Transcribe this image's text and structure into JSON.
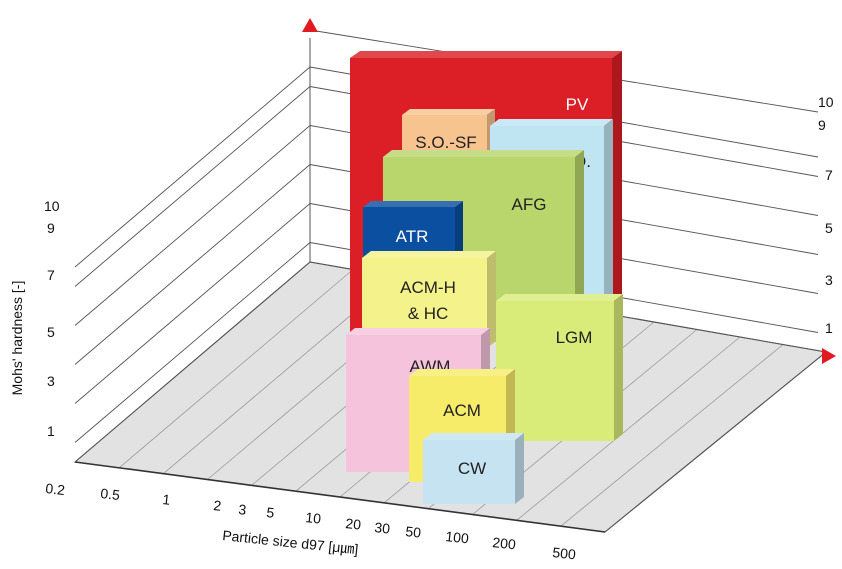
{
  "chart_data": {
    "type": "3d-box",
    "title": "",
    "xlabel": "Particle size d97 [μ㎛]",
    "ylabel": "Mohs' hardness [-]",
    "x_ticks": [
      "0.2",
      "0.5",
      "1",
      "2",
      "3",
      "5",
      "10",
      "20",
      "30",
      "50",
      "100",
      "200",
      "500"
    ],
    "y_ticks_left": [
      "1",
      "3",
      "5",
      "7",
      "9",
      "10"
    ],
    "y_ticks_back": [
      "1",
      "3",
      "5",
      "7",
      "9",
      "10"
    ],
    "x_scale": "log",
    "x_range": [
      0.2,
      500
    ],
    "y_range": [
      0,
      10
    ],
    "grid": true,
    "boxes": [
      {
        "name": "PV",
        "label": [
          "PV"
        ],
        "color": "#dc1f26",
        "x_range": [
          8,
          500
        ],
        "hardness_max": 10
      },
      {
        "name": "S.O.-SF",
        "label": [
          "S.O.-SF"
        ],
        "color": "#f7c38f",
        "x_range": [
          5,
          30
        ],
        "hardness_max": 9
      },
      {
        "name": "S.O.",
        "label": [
          "S.O."
        ],
        "color": "#bfe4f2",
        "x_range": [
          10,
          200
        ],
        "hardness_max": 9
      },
      {
        "name": "AFG",
        "label": [
          "AFG"
        ],
        "color": "#b8d66b",
        "x_range": [
          3,
          100
        ],
        "hardness_max": 8
      },
      {
        "name": "ATR",
        "label": [
          "ATR"
        ],
        "color": "#0b4fa0",
        "x_range": [
          1,
          5
        ],
        "hardness_max": 7
      },
      {
        "name": "ACM-H & HC",
        "label": [
          "ACM-H",
          "& HC"
        ],
        "color": "#f4f28a",
        "x_range": [
          1,
          10
        ],
        "hardness_max": 6
      },
      {
        "name": "LGM",
        "label": [
          "LGM"
        ],
        "color": "#d9ec7a",
        "x_range": [
          10,
          500
        ],
        "hardness_max": 5
      },
      {
        "name": "AWM",
        "label": [
          "AWM"
        ],
        "color": "#f6c3dc",
        "x_range": [
          0.5,
          5
        ],
        "hardness_max": 4
      },
      {
        "name": "ACM",
        "label": [
          "ACM"
        ],
        "color": "#f6ec6a",
        "x_range": [
          2,
          20
        ],
        "hardness_max": 3
      },
      {
        "name": "CW",
        "label": [
          "CW"
        ],
        "color": "#c6e3f1",
        "x_range": [
          10,
          100
        ],
        "hardness_max": 2
      }
    ]
  }
}
